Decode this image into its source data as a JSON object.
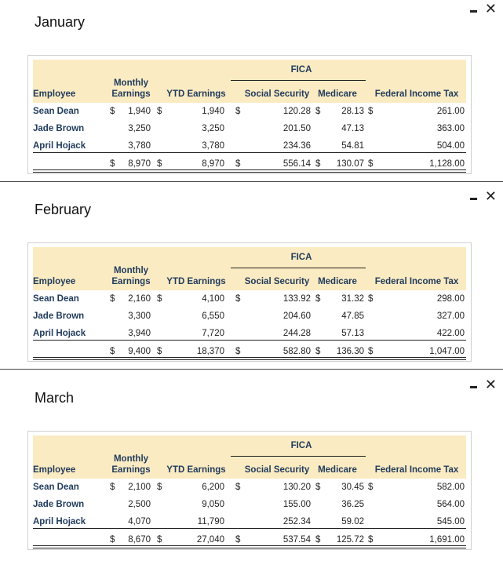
{
  "headers": {
    "fica": "FICA",
    "employee": "Employee",
    "monthly_line1": "Monthly",
    "monthly_line2": "Earnings",
    "ytd": "YTD Earnings",
    "ss": "Social Security",
    "medicare": "Medicare",
    "fit": "Federal Income Tax"
  },
  "currency": "$",
  "months": [
    {
      "title": "January",
      "rows": [
        {
          "name": "Sean Dean",
          "monthly": "1,940",
          "ytd": "1,940",
          "ss": "120.28",
          "med": "28.13",
          "fit": "261.00"
        },
        {
          "name": "Jade Brown",
          "monthly": "3,250",
          "ytd": "3,250",
          "ss": "201.50",
          "med": "47.13",
          "fit": "363.00"
        },
        {
          "name": "April Hojack",
          "monthly": "3,780",
          "ytd": "3,780",
          "ss": "234.36",
          "med": "54.81",
          "fit": "504.00"
        }
      ],
      "total": {
        "monthly": "8,970",
        "ytd": "8,970",
        "ss": "556.14",
        "med": "130.07",
        "fit": "1,128.00"
      }
    },
    {
      "title": "February",
      "rows": [
        {
          "name": "Sean Dean",
          "monthly": "2,160",
          "ytd": "4,100",
          "ss": "133.92",
          "med": "31.32",
          "fit": "298.00"
        },
        {
          "name": "Jade Brown",
          "monthly": "3,300",
          "ytd": "6,550",
          "ss": "204.60",
          "med": "47.85",
          "fit": "327.00"
        },
        {
          "name": "April Hojack",
          "monthly": "3,940",
          "ytd": "7,720",
          "ss": "244.28",
          "med": "57.13",
          "fit": "422.00"
        }
      ],
      "total": {
        "monthly": "9,400",
        "ytd": "18,370",
        "ss": "582.80",
        "med": "136.30",
        "fit": "1,047.00"
      }
    },
    {
      "title": "March",
      "rows": [
        {
          "name": "Sean Dean",
          "monthly": "2,100",
          "ytd": "6,200",
          "ss": "130.20",
          "med": "30.45",
          "fit": "582.00"
        },
        {
          "name": "Jade Brown",
          "monthly": "2,500",
          "ytd": "9,050",
          "ss": "155.00",
          "med": "36.25",
          "fit": "564.00"
        },
        {
          "name": "April Hojack",
          "monthly": "4,070",
          "ytd": "11,790",
          "ss": "252.34",
          "med": "59.02",
          "fit": "545.00"
        }
      ],
      "total": {
        "monthly": "8,670",
        "ytd": "27,040",
        "ss": "537.54",
        "med": "125.72",
        "fit": "1,691.00"
      }
    }
  ]
}
